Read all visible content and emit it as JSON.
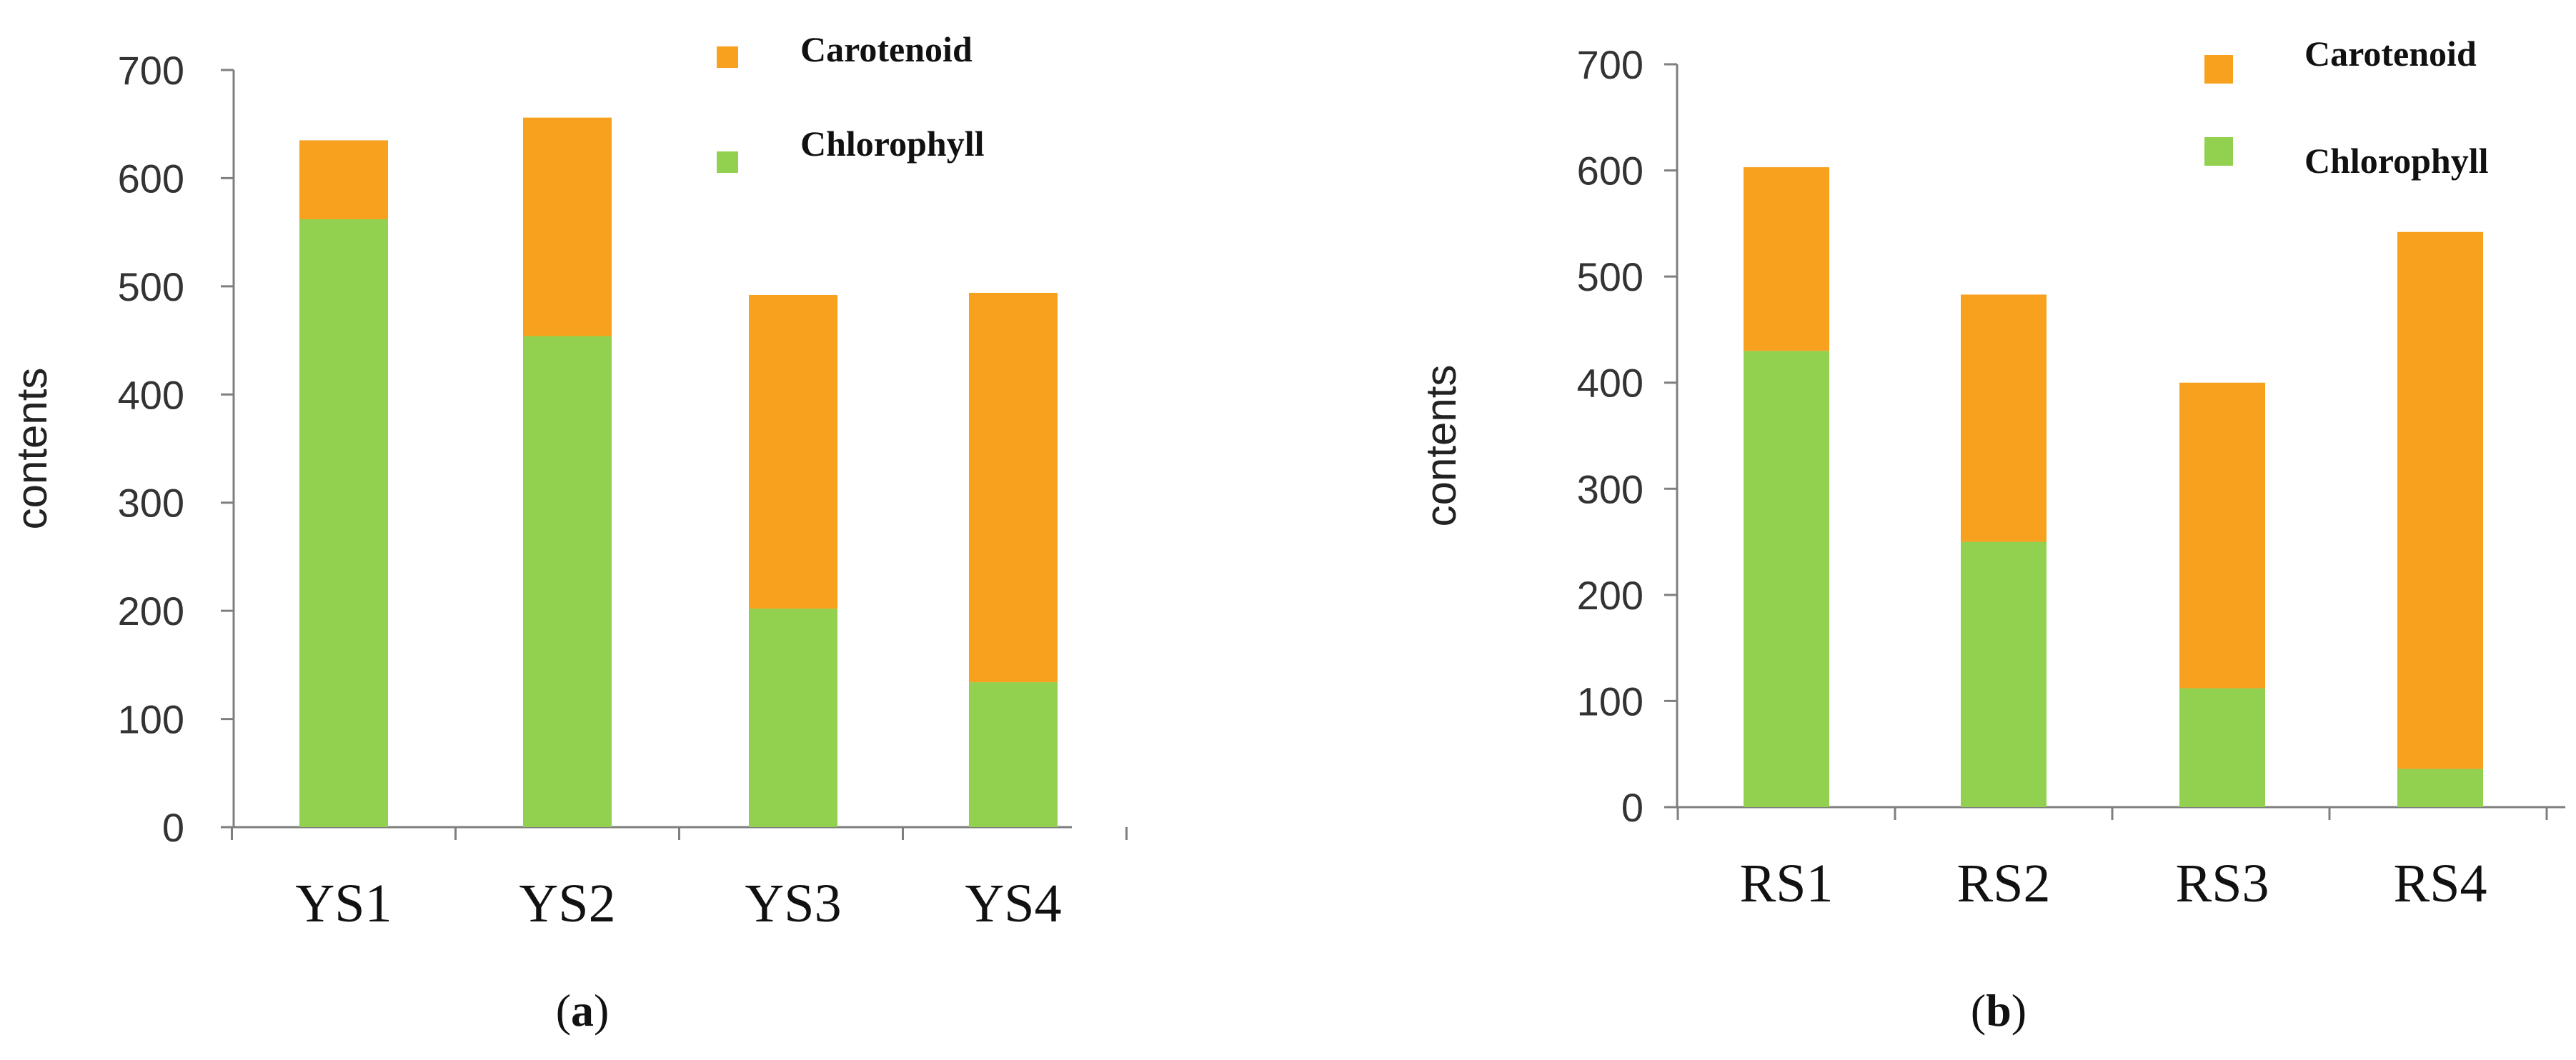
{
  "colors": {
    "carotenoid": "#F7A11F",
    "chlorophyll": "#92D050",
    "axis": "#7F7F7F"
  },
  "chart_data": [
    {
      "type": "bar",
      "stacked": true,
      "panel_label": "(a)",
      "panel_letter": "a",
      "categories": [
        "YS1",
        "YS2",
        "YS3",
        "YS4"
      ],
      "series": [
        {
          "name": "Chlorophyll",
          "values": [
            562,
            454,
            202,
            134
          ]
        },
        {
          "name": "Carotenoid",
          "values": [
            73,
            202,
            290,
            360
          ]
        }
      ],
      "totals": [
        635,
        656,
        492,
        494
      ],
      "ylabel": "contents",
      "xlabel": "",
      "ylim": [
        0,
        700
      ],
      "yticks": [
        0,
        100,
        200,
        300,
        400,
        500,
        600,
        700
      ],
      "grid": false,
      "legend": {
        "position": "top-right",
        "order": [
          "Carotenoid",
          "Chlorophyll"
        ]
      }
    },
    {
      "type": "bar",
      "stacked": true,
      "panel_label": "(b)",
      "panel_letter": "b",
      "categories": [
        "RS1",
        "RS2",
        "RS3",
        "RS4"
      ],
      "series": [
        {
          "name": "Chlorophyll",
          "values": [
            430,
            250,
            112,
            36
          ]
        },
        {
          "name": "Carotenoid",
          "values": [
            173,
            233,
            288,
            506
          ]
        }
      ],
      "totals": [
        603,
        483,
        400,
        542
      ],
      "ylabel": "contents",
      "xlabel": "",
      "ylim": [
        0,
        700
      ],
      "yticks": [
        0,
        100,
        200,
        300,
        400,
        500,
        600,
        700
      ],
      "grid": false,
      "legend": {
        "position": "top-right",
        "order": [
          "Carotenoid",
          "Chlorophyll"
        ]
      }
    }
  ]
}
